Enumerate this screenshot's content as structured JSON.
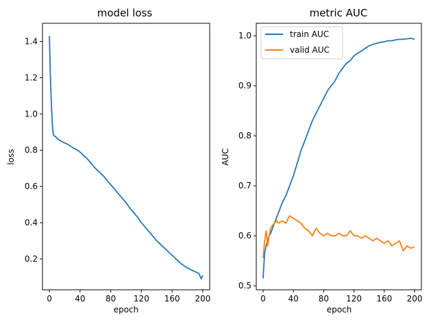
{
  "chart_data": [
    {
      "type": "line",
      "title": "model loss",
      "xlabel": "epoch",
      "ylabel": "loss",
      "xlim": [
        -9,
        209
      ],
      "ylim": [
        0.03,
        1.5
      ],
      "xticks": [
        0,
        40,
        80,
        120,
        160,
        200
      ],
      "yticks": [
        0.2,
        0.4,
        0.6,
        0.8,
        1.0,
        1.2,
        1.4
      ],
      "ytick_labels": [
        "0.2",
        "0.4",
        "0.6",
        "0.8",
        "1.0",
        "1.2",
        "1.4"
      ],
      "grid": false,
      "legend": null,
      "series": [
        {
          "color": "#1f77b4",
          "x": [
            0,
            1,
            2,
            3,
            4,
            5,
            6,
            8,
            10,
            15,
            20,
            25,
            30,
            35,
            40,
            45,
            50,
            55,
            60,
            65,
            70,
            75,
            80,
            85,
            90,
            95,
            100,
            105,
            110,
            115,
            120,
            125,
            130,
            135,
            140,
            145,
            150,
            155,
            160,
            165,
            170,
            175,
            180,
            185,
            190,
            195,
            198,
            200
          ],
          "y": [
            1.43,
            1.25,
            1.12,
            1.02,
            0.93,
            0.89,
            0.88,
            0.875,
            0.865,
            0.85,
            0.84,
            0.83,
            0.815,
            0.805,
            0.79,
            0.77,
            0.75,
            0.725,
            0.7,
            0.68,
            0.66,
            0.635,
            0.61,
            0.585,
            0.56,
            0.535,
            0.51,
            0.48,
            0.455,
            0.43,
            0.4,
            0.375,
            0.35,
            0.325,
            0.3,
            0.28,
            0.26,
            0.24,
            0.22,
            0.2,
            0.18,
            0.165,
            0.15,
            0.14,
            0.13,
            0.12,
            0.09,
            0.11
          ]
        }
      ]
    },
    {
      "type": "line",
      "title": "metric AUC",
      "xlabel": "epoch",
      "ylabel": "AUC",
      "xlim": [
        -9,
        209
      ],
      "ylim": [
        0.492,
        1.025
      ],
      "xticks": [
        0,
        40,
        80,
        120,
        160,
        200
      ],
      "yticks": [
        0.5,
        0.6,
        0.7,
        0.8,
        0.9,
        1.0
      ],
      "ytick_labels": [
        "0.5",
        "0.6",
        "0.7",
        "0.8",
        "0.9",
        "1.0"
      ],
      "grid": false,
      "legend": "top-left",
      "series": [
        {
          "name": "train AUC",
          "color": "#1f77b4",
          "x": [
            0,
            2,
            4,
            6,
            8,
            10,
            15,
            20,
            25,
            30,
            35,
            40,
            45,
            50,
            55,
            60,
            65,
            70,
            75,
            80,
            85,
            90,
            95,
            100,
            105,
            110,
            115,
            120,
            125,
            130,
            135,
            140,
            145,
            150,
            155,
            160,
            165,
            170,
            175,
            180,
            185,
            190,
            195,
            200
          ],
          "y": [
            0.515,
            0.565,
            0.58,
            0.59,
            0.6,
            0.605,
            0.625,
            0.645,
            0.665,
            0.68,
            0.7,
            0.72,
            0.745,
            0.77,
            0.79,
            0.81,
            0.83,
            0.845,
            0.86,
            0.875,
            0.89,
            0.9,
            0.91,
            0.925,
            0.935,
            0.945,
            0.95,
            0.96,
            0.965,
            0.97,
            0.975,
            0.98,
            0.983,
            0.985,
            0.987,
            0.988,
            0.99,
            0.99,
            0.992,
            0.993,
            0.993,
            0.994,
            0.995,
            0.993
          ]
        },
        {
          "name": "valid AUC",
          "color": "#ff7f0e",
          "x": [
            0,
            2,
            4,
            6,
            8,
            10,
            12,
            15,
            18,
            20,
            25,
            30,
            35,
            40,
            45,
            50,
            55,
            60,
            65,
            70,
            75,
            80,
            85,
            90,
            95,
            100,
            105,
            110,
            115,
            120,
            125,
            130,
            135,
            140,
            145,
            150,
            155,
            160,
            165,
            170,
            175,
            180,
            185,
            190,
            195,
            200
          ],
          "y": [
            0.555,
            0.59,
            0.61,
            0.58,
            0.6,
            0.615,
            0.62,
            0.625,
            0.63,
            0.625,
            0.63,
            0.625,
            0.64,
            0.635,
            0.63,
            0.625,
            0.615,
            0.61,
            0.6,
            0.615,
            0.605,
            0.6,
            0.605,
            0.6,
            0.6,
            0.605,
            0.6,
            0.6,
            0.61,
            0.6,
            0.6,
            0.595,
            0.6,
            0.595,
            0.59,
            0.595,
            0.59,
            0.585,
            0.59,
            0.58,
            0.585,
            0.59,
            0.57,
            0.58,
            0.575,
            0.578
          ]
        }
      ]
    }
  ]
}
